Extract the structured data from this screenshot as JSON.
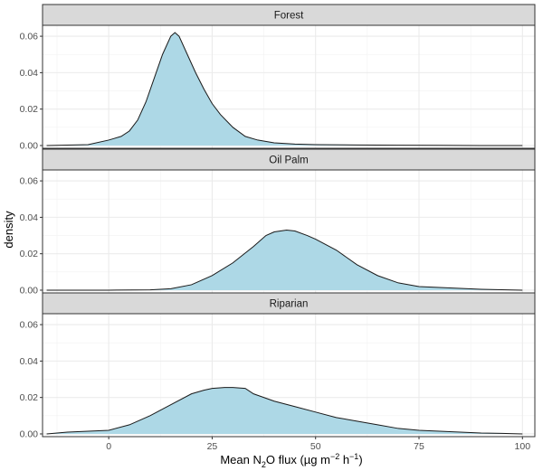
{
  "chart_data": {
    "type": "area",
    "facet_layout": "vertical",
    "xlabel": {
      "pre": "Mean N",
      "sub2": "2",
      "mid": "O flux (µg m",
      "sup1": "−2",
      "space": " h",
      "sup2": "−1",
      "post": ")"
    },
    "ylabel": "density",
    "xlim": [
      -16,
      103
    ],
    "ylim": [
      -0.0015,
      0.066
    ],
    "x_ticks": [
      0,
      25,
      50,
      75,
      100
    ],
    "y_ticks": [
      0.0,
      0.02,
      0.04,
      0.06
    ],
    "y_tick_labels": [
      "0.00",
      "0.02",
      "0.04",
      "0.06"
    ],
    "fill_color": "#add8e6",
    "line_color": "#1a1a1a",
    "strip_color": "#d9d9d9",
    "grid": true,
    "panels": [
      {
        "name": "Forest",
        "x": [
          -15,
          -5,
          0,
          3,
          5,
          7,
          9,
          11,
          13,
          15,
          16,
          17,
          19,
          21,
          23,
          25,
          27,
          30,
          33,
          36,
          40,
          45,
          50,
          60,
          70,
          80,
          90,
          100
        ],
        "y": [
          0.0,
          0.0005,
          0.003,
          0.005,
          0.008,
          0.014,
          0.024,
          0.037,
          0.05,
          0.06,
          0.062,
          0.06,
          0.05,
          0.04,
          0.031,
          0.023,
          0.017,
          0.01,
          0.005,
          0.003,
          0.0015,
          0.0008,
          0.0005,
          0.0003,
          0.0002,
          0.0001,
          0.0,
          0.0
        ]
      },
      {
        "name": "Oil Palm",
        "x": [
          -15,
          0,
          10,
          15,
          20,
          25,
          30,
          35,
          38,
          40,
          43,
          45,
          48,
          50,
          55,
          60,
          65,
          70,
          75,
          80,
          85,
          90,
          100
        ],
        "y": [
          0.0,
          0.0,
          0.0002,
          0.0008,
          0.003,
          0.008,
          0.015,
          0.024,
          0.03,
          0.032,
          0.033,
          0.0325,
          0.03,
          0.028,
          0.022,
          0.014,
          0.008,
          0.004,
          0.002,
          0.0015,
          0.001,
          0.0005,
          0.0
        ]
      },
      {
        "name": "Riparian",
        "x": [
          -15,
          -10,
          -5,
          0,
          5,
          10,
          15,
          20,
          23,
          25,
          28,
          30,
          33,
          35,
          40,
          45,
          50,
          55,
          60,
          65,
          70,
          75,
          80,
          85,
          90,
          95,
          100
        ],
        "y": [
          0.0,
          0.001,
          0.0015,
          0.002,
          0.005,
          0.01,
          0.016,
          0.022,
          0.024,
          0.025,
          0.0255,
          0.0255,
          0.025,
          0.022,
          0.018,
          0.015,
          0.012,
          0.009,
          0.007,
          0.005,
          0.003,
          0.002,
          0.0015,
          0.001,
          0.0005,
          0.0003,
          0.0
        ]
      }
    ]
  }
}
